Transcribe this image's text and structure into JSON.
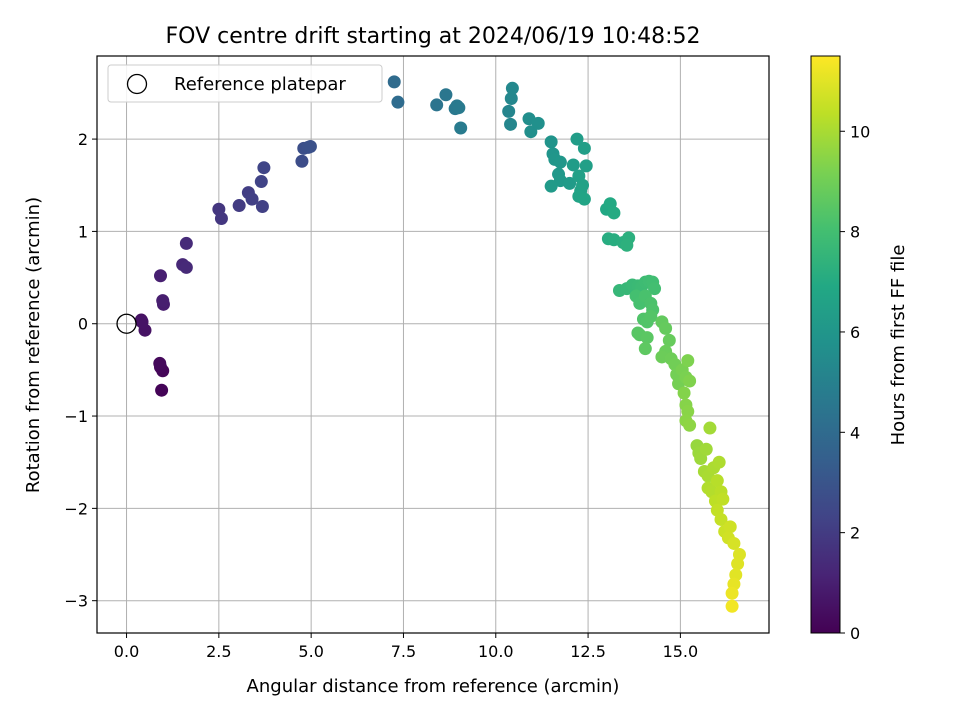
{
  "chart_data": {
    "type": "scatter",
    "title": "FOV centre drift starting at 2024/06/19 10:48:52",
    "xlabel": "Angular distance from reference (arcmin)",
    "ylabel": "Rotation from reference (arcmin)",
    "xlim": [
      -0.8,
      17.4
    ],
    "ylim": [
      -3.35,
      2.9
    ],
    "xticks": [
      0.0,
      2.5,
      5.0,
      7.5,
      10.0,
      12.5,
      15.0
    ],
    "xtick_labels": [
      "0.0",
      "2.5",
      "5.0",
      "7.5",
      "10.0",
      "12.5",
      "15.0"
    ],
    "yticks": [
      -3,
      -2,
      -1,
      0,
      1,
      2
    ],
    "ytick_labels": [
      "−3",
      "−2",
      "−1",
      "0",
      "1",
      "2"
    ],
    "grid": true,
    "colormap": "viridis",
    "colorbar": {
      "label": "Hours from first FF file",
      "range": [
        0,
        11.5
      ],
      "ticks": [
        0,
        2,
        4,
        6,
        8,
        10
      ],
      "tick_labels": [
        "0",
        "2",
        "4",
        "6",
        "8",
        "10"
      ]
    },
    "legend": {
      "placement": "top-left",
      "entries": [
        {
          "label": "Reference platepar",
          "marker": "hollow-circle"
        }
      ]
    },
    "reference_point": {
      "x": 0,
      "y": 0
    },
    "points": [
      {
        "x": 0.95,
        "y": -0.72,
        "c": 0.1
      },
      {
        "x": 0.98,
        "y": -0.51,
        "c": 0.15
      },
      {
        "x": 0.92,
        "y": -0.47,
        "c": 0.2
      },
      {
        "x": 0.9,
        "y": -0.43,
        "c": 0.25
      },
      {
        "x": 0.4,
        "y": 0.04,
        "c": 0.5
      },
      {
        "x": 0.5,
        "y": -0.07,
        "c": 0.55
      },
      {
        "x": 0.42,
        "y": 0.02,
        "c": 0.6
      },
      {
        "x": 1.0,
        "y": 0.21,
        "c": 0.9
      },
      {
        "x": 0.98,
        "y": 0.25,
        "c": 0.95
      },
      {
        "x": 0.92,
        "y": 0.52,
        "c": 1.0
      },
      {
        "x": 1.52,
        "y": 0.64,
        "c": 1.3
      },
      {
        "x": 1.62,
        "y": 0.61,
        "c": 1.35
      },
      {
        "x": 1.62,
        "y": 0.87,
        "c": 1.4
      },
      {
        "x": 2.5,
        "y": 1.24,
        "c": 1.8
      },
      {
        "x": 2.57,
        "y": 1.14,
        "c": 1.85
      },
      {
        "x": 3.05,
        "y": 1.28,
        "c": 2.0
      },
      {
        "x": 3.3,
        "y": 1.42,
        "c": 2.1
      },
      {
        "x": 3.4,
        "y": 1.35,
        "c": 2.15
      },
      {
        "x": 3.68,
        "y": 1.27,
        "c": 2.2
      },
      {
        "x": 3.65,
        "y": 1.54,
        "c": 2.3
      },
      {
        "x": 3.72,
        "y": 1.69,
        "c": 2.35
      },
      {
        "x": 4.75,
        "y": 1.76,
        "c": 2.7
      },
      {
        "x": 4.8,
        "y": 1.9,
        "c": 2.75
      },
      {
        "x": 4.92,
        "y": 1.91,
        "c": 2.8
      },
      {
        "x": 4.98,
        "y": 1.92,
        "c": 2.85
      },
      {
        "x": 7.25,
        "y": 2.62,
        "c": 4.0
      },
      {
        "x": 7.35,
        "y": 2.4,
        "c": 4.05
      },
      {
        "x": 8.4,
        "y": 2.37,
        "c": 4.4
      },
      {
        "x": 8.65,
        "y": 2.48,
        "c": 4.5
      },
      {
        "x": 8.9,
        "y": 2.33,
        "c": 4.6
      },
      {
        "x": 8.95,
        "y": 2.36,
        "c": 4.65
      },
      {
        "x": 9.0,
        "y": 2.34,
        "c": 4.7
      },
      {
        "x": 9.05,
        "y": 2.12,
        "c": 4.75
      },
      {
        "x": 10.35,
        "y": 2.3,
        "c": 5.2
      },
      {
        "x": 10.4,
        "y": 2.16,
        "c": 5.25
      },
      {
        "x": 10.42,
        "y": 2.44,
        "c": 5.3
      },
      {
        "x": 10.45,
        "y": 2.55,
        "c": 5.35
      },
      {
        "x": 10.9,
        "y": 2.22,
        "c": 5.6
      },
      {
        "x": 10.95,
        "y": 2.08,
        "c": 5.65
      },
      {
        "x": 11.15,
        "y": 2.17,
        "c": 5.7
      },
      {
        "x": 11.5,
        "y": 1.97,
        "c": 5.9
      },
      {
        "x": 11.55,
        "y": 1.84,
        "c": 5.95
      },
      {
        "x": 11.6,
        "y": 1.78,
        "c": 6.0
      },
      {
        "x": 11.75,
        "y": 1.75,
        "c": 6.05
      },
      {
        "x": 11.7,
        "y": 1.62,
        "c": 6.1
      },
      {
        "x": 11.75,
        "y": 1.55,
        "c": 6.15
      },
      {
        "x": 11.5,
        "y": 1.49,
        "c": 6.2
      },
      {
        "x": 12.0,
        "y": 1.52,
        "c": 6.25
      },
      {
        "x": 12.1,
        "y": 1.72,
        "c": 6.3
      },
      {
        "x": 12.2,
        "y": 2.0,
        "c": 6.35
      },
      {
        "x": 12.4,
        "y": 1.9,
        "c": 6.4
      },
      {
        "x": 12.45,
        "y": 1.71,
        "c": 6.45
      },
      {
        "x": 12.25,
        "y": 1.6,
        "c": 6.5
      },
      {
        "x": 12.35,
        "y": 1.5,
        "c": 6.55
      },
      {
        "x": 12.3,
        "y": 1.44,
        "c": 6.6
      },
      {
        "x": 12.25,
        "y": 1.38,
        "c": 6.65
      },
      {
        "x": 12.4,
        "y": 1.35,
        "c": 6.7
      },
      {
        "x": 13.0,
        "y": 1.24,
        "c": 6.9
      },
      {
        "x": 13.1,
        "y": 1.3,
        "c": 6.95
      },
      {
        "x": 13.2,
        "y": 1.2,
        "c": 7.0
      },
      {
        "x": 13.05,
        "y": 0.92,
        "c": 7.1
      },
      {
        "x": 13.2,
        "y": 0.91,
        "c": 7.15
      },
      {
        "x": 13.45,
        "y": 0.88,
        "c": 7.2
      },
      {
        "x": 13.6,
        "y": 0.93,
        "c": 7.25
      },
      {
        "x": 13.55,
        "y": 0.85,
        "c": 7.3
      },
      {
        "x": 13.35,
        "y": 0.36,
        "c": 7.6
      },
      {
        "x": 13.55,
        "y": 0.38,
        "c": 7.65
      },
      {
        "x": 13.7,
        "y": 0.42,
        "c": 7.7
      },
      {
        "x": 13.85,
        "y": 0.41,
        "c": 7.75
      },
      {
        "x": 13.95,
        "y": 0.4,
        "c": 7.8
      },
      {
        "x": 14.05,
        "y": 0.45,
        "c": 7.85
      },
      {
        "x": 14.15,
        "y": 0.46,
        "c": 7.9
      },
      {
        "x": 14.25,
        "y": 0.45,
        "c": 7.95
      },
      {
        "x": 14.3,
        "y": 0.38,
        "c": 8.0
      },
      {
        "x": 13.8,
        "y": 0.3,
        "c": 8.05
      },
      {
        "x": 13.9,
        "y": 0.22,
        "c": 8.1
      },
      {
        "x": 14.05,
        "y": 0.3,
        "c": 8.15
      },
      {
        "x": 14.2,
        "y": 0.22,
        "c": 8.2
      },
      {
        "x": 14.25,
        "y": 0.15,
        "c": 8.25
      },
      {
        "x": 14.0,
        "y": 0.05,
        "c": 8.3
      },
      {
        "x": 14.1,
        "y": 0.02,
        "c": 8.35
      },
      {
        "x": 14.2,
        "y": 0.08,
        "c": 8.4
      },
      {
        "x": 13.85,
        "y": -0.1,
        "c": 8.45
      },
      {
        "x": 13.9,
        "y": -0.12,
        "c": 8.5
      },
      {
        "x": 14.1,
        "y": -0.15,
        "c": 8.55
      },
      {
        "x": 14.05,
        "y": -0.27,
        "c": 8.6
      },
      {
        "x": 14.5,
        "y": 0.02,
        "c": 8.7
      },
      {
        "x": 14.6,
        "y": -0.05,
        "c": 8.75
      },
      {
        "x": 14.7,
        "y": -0.18,
        "c": 8.8
      },
      {
        "x": 14.6,
        "y": -0.3,
        "c": 8.85
      },
      {
        "x": 14.5,
        "y": -0.36,
        "c": 8.9
      },
      {
        "x": 14.75,
        "y": -0.38,
        "c": 8.95
      },
      {
        "x": 14.85,
        "y": -0.44,
        "c": 9.0
      },
      {
        "x": 14.9,
        "y": -0.55,
        "c": 9.05
      },
      {
        "x": 14.95,
        "y": -0.65,
        "c": 9.1
      },
      {
        "x": 15.05,
        "y": -0.5,
        "c": 9.15
      },
      {
        "x": 15.15,
        "y": -0.58,
        "c": 9.2
      },
      {
        "x": 15.2,
        "y": -0.4,
        "c": 9.25
      },
      {
        "x": 15.25,
        "y": -0.62,
        "c": 9.3
      },
      {
        "x": 15.1,
        "y": -0.75,
        "c": 9.35
      },
      {
        "x": 15.15,
        "y": -0.88,
        "c": 9.4
      },
      {
        "x": 15.2,
        "y": -0.95,
        "c": 9.45
      },
      {
        "x": 15.15,
        "y": -1.05,
        "c": 9.5
      },
      {
        "x": 15.25,
        "y": -1.1,
        "c": 9.55
      },
      {
        "x": 15.45,
        "y": -1.32,
        "c": 9.7
      },
      {
        "x": 15.5,
        "y": -1.4,
        "c": 9.75
      },
      {
        "x": 15.55,
        "y": -1.46,
        "c": 9.8
      },
      {
        "x": 15.7,
        "y": -1.36,
        "c": 9.85
      },
      {
        "x": 15.8,
        "y": -1.13,
        "c": 9.9
      },
      {
        "x": 15.65,
        "y": -1.6,
        "c": 9.95
      },
      {
        "x": 15.75,
        "y": -1.65,
        "c": 10.0
      },
      {
        "x": 15.9,
        "y": -1.56,
        "c": 10.05
      },
      {
        "x": 16.05,
        "y": -1.5,
        "c": 10.1
      },
      {
        "x": 15.75,
        "y": -1.78,
        "c": 10.15
      },
      {
        "x": 15.85,
        "y": -1.82,
        "c": 10.2
      },
      {
        "x": 16.0,
        "y": -1.7,
        "c": 10.25
      },
      {
        "x": 16.1,
        "y": -1.82,
        "c": 10.3
      },
      {
        "x": 15.95,
        "y": -1.92,
        "c": 10.35
      },
      {
        "x": 16.15,
        "y": -1.9,
        "c": 10.4
      },
      {
        "x": 16.0,
        "y": -2.02,
        "c": 10.45
      },
      {
        "x": 16.1,
        "y": -2.12,
        "c": 10.5
      },
      {
        "x": 16.2,
        "y": -2.25,
        "c": 10.6
      },
      {
        "x": 16.35,
        "y": -2.2,
        "c": 10.65
      },
      {
        "x": 16.3,
        "y": -2.32,
        "c": 10.7
      },
      {
        "x": 16.45,
        "y": -2.38,
        "c": 10.8
      },
      {
        "x": 16.6,
        "y": -2.5,
        "c": 10.9
      },
      {
        "x": 16.55,
        "y": -2.6,
        "c": 10.95
      },
      {
        "x": 16.5,
        "y": -2.72,
        "c": 11.0
      },
      {
        "x": 16.45,
        "y": -2.82,
        "c": 11.1
      },
      {
        "x": 16.4,
        "y": -2.92,
        "c": 11.2
      },
      {
        "x": 16.4,
        "y": -3.06,
        "c": 11.3
      }
    ]
  }
}
